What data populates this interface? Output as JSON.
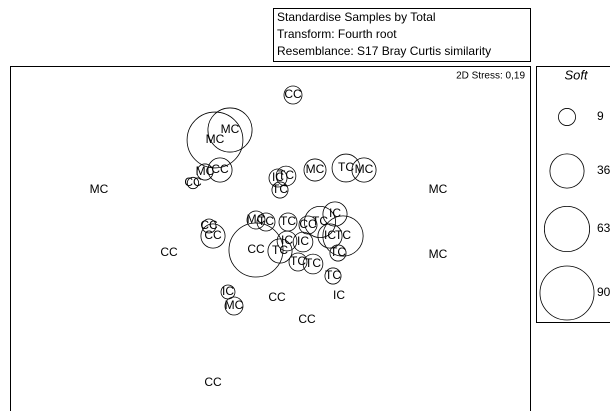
{
  "chart_data": {
    "type": "scatter",
    "header": [
      "Standardise Samples by Total",
      "Transform: Fourth root",
      "Resemblance: S17 Bray Curtis similarity"
    ],
    "annotation": "2D Stress: 0,19",
    "xlim": [
      0,
      520
    ],
    "ylim": [
      0,
      345
    ],
    "x": [
      283,
      205,
      220,
      195,
      210,
      183,
      89,
      268,
      276,
      270,
      305,
      336,
      354,
      428,
      199,
      203,
      246,
      256,
      278,
      298,
      310,
      325,
      246,
      270,
      277,
      293,
      288,
      303,
      320,
      333,
      328,
      159,
      428,
      323,
      218,
      224,
      267,
      329,
      297,
      203
    ],
    "y": [
      316,
      271,
      281,
      239,
      241,
      228,
      221,
      233,
      235,
      221,
      241,
      243,
      241,
      221,
      185,
      175,
      191,
      189,
      189,
      186,
      189,
      197,
      161,
      160,
      170,
      169,
      149,
      147,
      175,
      175,
      158,
      158,
      156,
      135,
      119,
      105,
      113,
      115,
      91,
      28
    ],
    "sizes": [
      10,
      96,
      60,
      8,
      18,
      4,
      0,
      10,
      12,
      8,
      15,
      24,
      18,
      0,
      6,
      18,
      10,
      10,
      10,
      10,
      30,
      18,
      90,
      18,
      12,
      12,
      10,
      12,
      18,
      50,
      8,
      0,
      0,
      8,
      6,
      10,
      0,
      0,
      0,
      0
    ],
    "point_labels": [
      "CC",
      "MC",
      "MC",
      "MC",
      "CC",
      "CC",
      "MC",
      "IC",
      "TC",
      "TC",
      "MC",
      "TC",
      "MC",
      "MC",
      "CC",
      "CC",
      "MC",
      "TC",
      "TC",
      "CC",
      "TC",
      "IC",
      "CC",
      "TC",
      "IC",
      "IC",
      "TC",
      "TC",
      "IC",
      "TC",
      "TC",
      "CC",
      "MC",
      "TC",
      "IC",
      "MC",
      "CC",
      "IC",
      "CC",
      "CC"
    ],
    "legend": {
      "title": "Soft",
      "values": [
        9,
        36,
        63,
        90
      ]
    }
  }
}
